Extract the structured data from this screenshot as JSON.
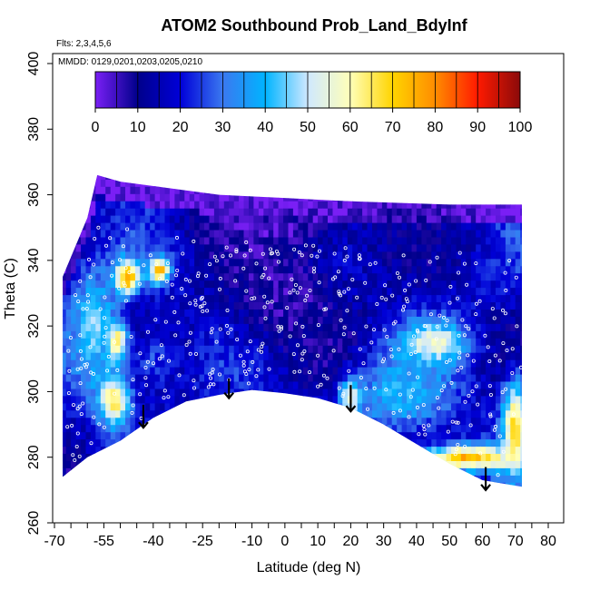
{
  "chart_data": {
    "type": "heatmap",
    "title": "ATOM2 Southbound Prob_Land_BdyInf",
    "subtitle_flights": "Flts: 2,3,4,5,6",
    "subtitle_dates": "MMDD: 0129,0201,0203,0205,0210",
    "xlabel": "Latitude (deg N)",
    "ylabel": "Theta (C)",
    "xlim": [
      -70,
      80
    ],
    "ylim": [
      260,
      400
    ],
    "x_ticks": [
      -70,
      -65,
      -60,
      -55,
      -50,
      -45,
      -40,
      -35,
      -30,
      -25,
      -20,
      -15,
      -10,
      -5,
      0,
      5,
      10,
      15,
      20,
      25,
      30,
      35,
      40,
      45,
      50,
      55,
      60,
      65,
      70,
      75,
      80
    ],
    "x_tick_labels": [
      "-70",
      "",
      "",
      "-55",
      "",
      "",
      "-40",
      "",
      "",
      "-25",
      "",
      "",
      "-10",
      "",
      "0",
      "",
      "10",
      "",
      "20",
      "",
      "30",
      "",
      "40",
      "",
      "50",
      "",
      "60",
      "",
      "70",
      "",
      "80"
    ],
    "y_ticks": [
      260,
      280,
      300,
      320,
      340,
      360,
      380,
      400
    ],
    "colorbar": {
      "min": 0,
      "max": 100,
      "ticks": [
        0,
        10,
        20,
        30,
        40,
        50,
        60,
        70,
        80,
        90,
        100
      ],
      "colors": [
        "#7a1ff5",
        "#00008b",
        "#0000d8",
        "#3a78f0",
        "#00b4ff",
        "#cfe8ff",
        "#ffffb8",
        "#ffd400",
        "#ff8c00",
        "#ff1a00",
        "#8b0a0a"
      ]
    },
    "lower_boundary": [
      {
        "lat": -67.5,
        "theta": 274
      },
      {
        "lat": -60,
        "theta": 280
      },
      {
        "lat": -50,
        "theta": 285
      },
      {
        "lat": -40,
        "theta": 292
      },
      {
        "lat": -30,
        "theta": 297
      },
      {
        "lat": -20,
        "theta": 299
      },
      {
        "lat": -10,
        "theta": 300.5
      },
      {
        "lat": 0,
        "theta": 299.5
      },
      {
        "lat": 10,
        "theta": 298
      },
      {
        "lat": 20,
        "theta": 295
      },
      {
        "lat": 30,
        "theta": 290
      },
      {
        "lat": 40,
        "theta": 284
      },
      {
        "lat": 50,
        "theta": 278
      },
      {
        "lat": 60,
        "theta": 273
      },
      {
        "lat": 72,
        "theta": 271
      }
    ],
    "upper_boundary": [
      {
        "lat": -67.5,
        "theta": 335
      },
      {
        "lat": -60,
        "theta": 353
      },
      {
        "lat": -57,
        "theta": 366
      },
      {
        "lat": -50,
        "theta": 364
      },
      {
        "lat": -35,
        "theta": 362
      },
      {
        "lat": -20,
        "theta": 360
      },
      {
        "lat": 0,
        "theta": 359
      },
      {
        "lat": 20,
        "theta": 358
      },
      {
        "lat": 50,
        "theta": 357
      },
      {
        "lat": 66,
        "theta": 357
      },
      {
        "lat": 67,
        "theta": 357
      }
    ],
    "field_blobs": [
      {
        "lat": -48,
        "theta": 335,
        "value": 80,
        "dlat": 4,
        "dtheta": 5
      },
      {
        "lat": -51,
        "theta": 315,
        "value": 85,
        "dlat": 3,
        "dtheta": 6
      },
      {
        "lat": -52,
        "theta": 298,
        "value": 70,
        "dlat": 5,
        "dtheta": 8
      },
      {
        "lat": -38,
        "theta": 337,
        "value": 75,
        "dlat": 3,
        "dtheta": 4
      },
      {
        "lat": 20,
        "theta": 298,
        "value": 70,
        "dlat": 3,
        "dtheta": 6
      },
      {
        "lat": 45,
        "theta": 315,
        "value": 60,
        "dlat": 10,
        "dtheta": 6
      },
      {
        "lat": 55,
        "theta": 280,
        "value": 75,
        "dlat": 15,
        "dtheta": 4
      },
      {
        "lat": 70,
        "theta": 290,
        "value": 68,
        "dlat": 4,
        "dtheta": 14
      },
      {
        "lat": 35,
        "theta": 300,
        "value": 40,
        "dlat": 15,
        "dtheta": 12
      },
      {
        "lat": -58,
        "theta": 320,
        "value": 45,
        "dlat": 7,
        "dtheta": 18
      },
      {
        "lat": 0,
        "theta": 330,
        "value": 6,
        "dlat": 20,
        "dtheta": 20
      },
      {
        "lat": -5,
        "theta": 350,
        "value": 4,
        "dlat": 25,
        "dtheta": 6
      },
      {
        "lat": 40,
        "theta": 345,
        "value": 12,
        "dlat": 20,
        "dtheta": 10
      },
      {
        "lat": -40,
        "theta": 310,
        "value": 25,
        "dlat": 8,
        "dtheta": 10
      }
    ],
    "arrows": [
      {
        "lat": -43,
        "theta_top": 296,
        "theta_bottom": 289
      },
      {
        "lat": -17,
        "theta_top": 304,
        "theta_bottom": 298
      },
      {
        "lat": 20,
        "theta_top": 302,
        "theta_bottom": 294
      },
      {
        "lat": 61,
        "theta_top": 277,
        "theta_bottom": 270
      }
    ]
  }
}
